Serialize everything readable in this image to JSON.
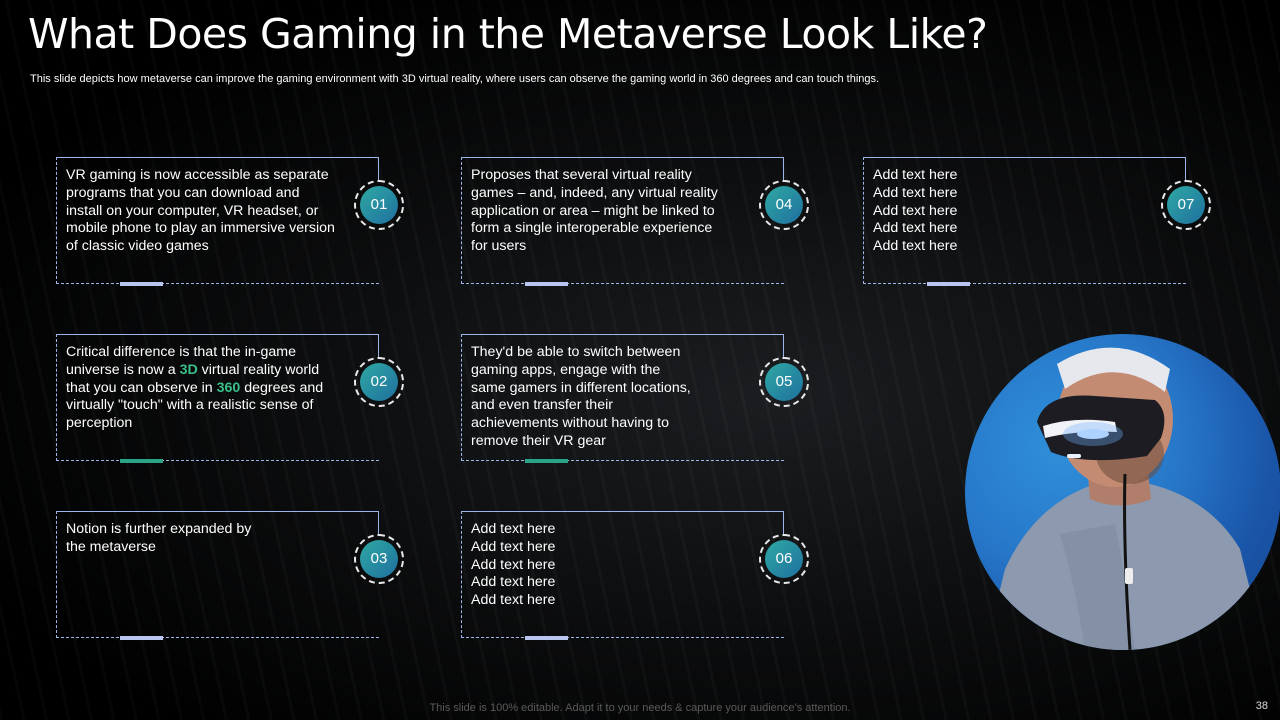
{
  "slide": {
    "title": "What Does Gaming in the Metaverse Look Like?",
    "subtitle": "This slide depicts how metaverse can improve the gaming environment with 3D virtual reality, where users can observe the gaming world in 360 degrees and can touch things.",
    "footer": "This slide is 100% editable. Adapt it to your needs & capture your audience’s attention.",
    "page_number": "38"
  },
  "cards": [
    {
      "number": "01",
      "text": "VR gaming is now accessible as separate\nprograms that you can download and\ninstall on your computer, VR headset, or\nmobile phone to play an immersive version\nof classic video games"
    },
    {
      "number": "02",
      "text_a": "Critical difference is that the in-game\nuniverse is now a ",
      "hl1": "3D",
      "text_b": " virtual reality world\nthat you can observe in ",
      "hl2": "360",
      "text_c": " degrees and\nvirtually \"touch\" with a realistic sense of\nperception"
    },
    {
      "number": "03",
      "text": "Notion is further expanded by\nthe metaverse"
    },
    {
      "number": "04",
      "text": "Proposes that several virtual reality\ngames – and, indeed, any virtual reality\napplication or area – might be linked to\nform a single interoperable experience\nfor users"
    },
    {
      "number": "05",
      "text": "They'd be able to switch between\ngaming apps, engage with the\nsame gamers in different locations,\nand even transfer their\nachievements without having to\nremove their VR gear"
    },
    {
      "number": "06",
      "text": "Add text here\nAdd text here\nAdd text here\nAdd text here\nAdd text here"
    },
    {
      "number": "07",
      "text": "Add text here\nAdd text here\nAdd text here\nAdd text here\nAdd text here"
    }
  ]
}
